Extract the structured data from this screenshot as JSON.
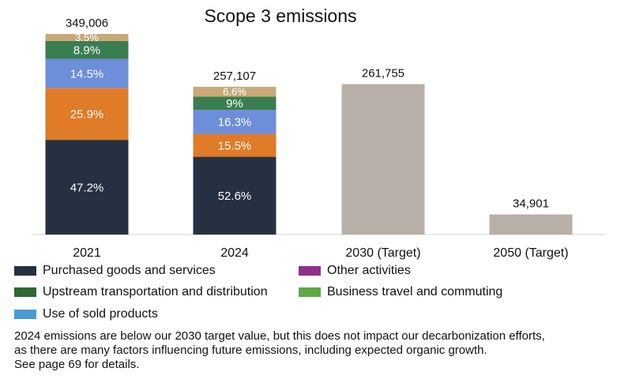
{
  "chart_data": {
    "type": "bar",
    "stacked": true,
    "title": "Scope 3 emissions",
    "categories": [
      "2021",
      "2024",
      "2030  (Target)",
      "2050 (Target)"
    ],
    "totals": [
      349006,
      257107,
      261755,
      34901
    ],
    "total_labels": [
      "349,006",
      "257,107",
      "261,755",
      "34,901"
    ],
    "stacks": [
      {
        "category": "2021",
        "segments": [
          {
            "value": 47.2,
            "label": "47.2%",
            "color": "#253141"
          },
          {
            "value": 25.9,
            "label": "25.9%",
            "color": "#e07b27"
          },
          {
            "value": 14.5,
            "label": "14.5%",
            "color": "#6d8ed9"
          },
          {
            "value": 8.9,
            "label": "8.9%",
            "color": "#3a7d50"
          },
          {
            "value": 3.5,
            "label": "3.5%",
            "color": "#c6a977"
          }
        ]
      },
      {
        "category": "2024",
        "segments": [
          {
            "value": 52.6,
            "label": "52.6%",
            "color": "#253141"
          },
          {
            "value": 15.5,
            "label": "15.5%",
            "color": "#e07b27"
          },
          {
            "value": 16.3,
            "label": "16.3%",
            "color": "#6d8ed9"
          },
          {
            "value": 9,
            "label": "9%",
            "color": "#3a7d50"
          },
          {
            "value": 6.6,
            "label": "6.6%",
            "color": "#c6a977"
          }
        ]
      },
      {
        "category": "2030  (Target)",
        "segments": [
          {
            "value": 100,
            "label": "",
            "color": "#b7afa8"
          }
        ]
      },
      {
        "category": "2050 (Target)",
        "segments": [
          {
            "value": 100,
            "label": "",
            "color": "#b7afa8"
          }
        ]
      }
    ],
    "ylim": [
      0,
      349006
    ],
    "grid": false,
    "legend": {
      "placement": "bottom",
      "items": [
        {
          "name": "Purchased goods and services",
          "color": "#253141"
        },
        {
          "name": "Other activities",
          "color": "#8e2f8e"
        },
        {
          "name": "Upstream transportation and distribution",
          "color": "#2e6b33"
        },
        {
          "name": "Business travel and commuting",
          "color": "#5fa845"
        },
        {
          "name": "Use of sold products",
          "color": "#4a9ad6"
        }
      ]
    }
  },
  "note": {
    "lines": [
      "2024 emissions are below our 2030 target value, but this does not impact our decarbonization efforts,",
      "as there are many factors influencing future emissions, including expected organic growth.",
      "See page 69 for details."
    ]
  }
}
